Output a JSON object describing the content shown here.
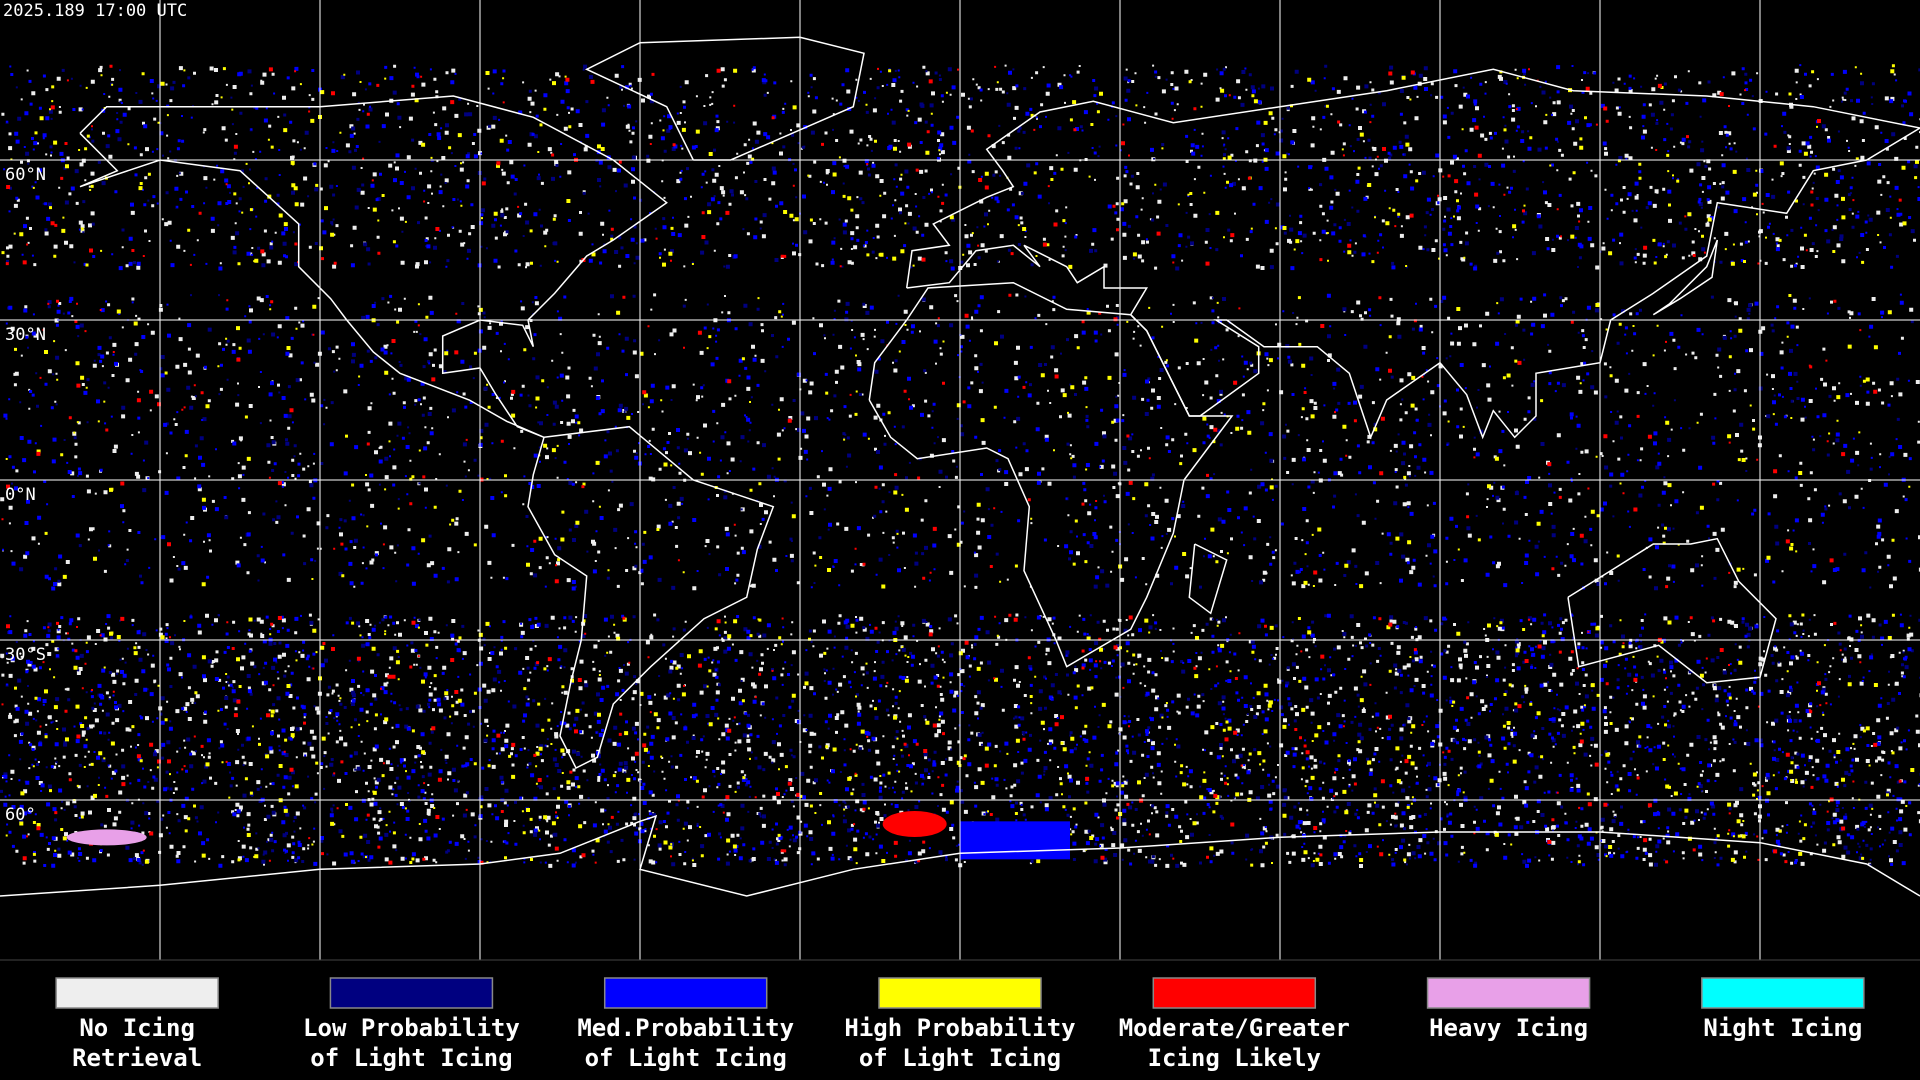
{
  "header": {
    "timestamp": "2025.189 17:00 UTC"
  },
  "map": {
    "lat_labels": [
      "60°N",
      "30°N",
      "0°N",
      "30°S",
      "60°"
    ]
  },
  "legend": [
    {
      "label": [
        "No Icing",
        "Retrieval"
      ],
      "color": "#eeeeee"
    },
    {
      "label": [
        "Low Probability",
        "of Light Icing"
      ],
      "color": "#000080"
    },
    {
      "label": [
        "Med.Probability",
        "of Light Icing"
      ],
      "color": "#0000ff"
    },
    {
      "label": [
        "High Probability",
        "of Light Icing"
      ],
      "color": "#ffff00"
    },
    {
      "label": [
        "Moderate/Greater",
        "Icing Likely"
      ],
      "color": "#ff0000"
    },
    {
      "label": [
        "Heavy Icing"
      ],
      "color": "#e8a0e8"
    },
    {
      "label": [
        "Night Icing"
      ],
      "color": "#00ffff"
    }
  ]
}
